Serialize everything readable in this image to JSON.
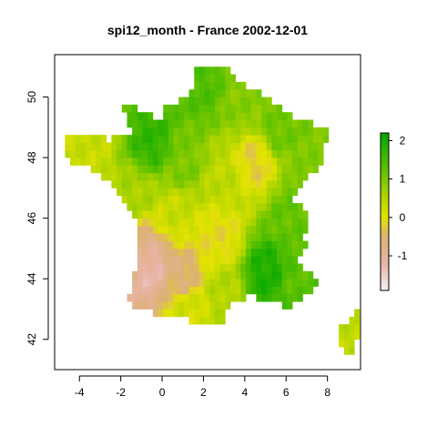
{
  "chart_data": {
    "type": "heatmap",
    "title": "spi12_month - France 2002-12-01",
    "xlabel": "",
    "ylabel": "",
    "xlim": [
      -5.2,
      9.6
    ],
    "ylim": [
      41.0,
      51.4
    ],
    "x_ticks": [
      "-4",
      "-2",
      "0",
      "2",
      "4",
      "6",
      "8"
    ],
    "y_ticks": [
      "42",
      "44",
      "46",
      "48",
      "50"
    ],
    "grid": false,
    "legend": "right colorbar",
    "colorbar": {
      "range": [
        -1.9,
        2.2
      ],
      "ticks": [
        "-1",
        "0",
        "1",
        "2"
      ],
      "stops": [
        {
          "v": -1.9,
          "color": "#f2f2f2"
        },
        {
          "v": -1.2,
          "color": "#e8b4a8"
        },
        {
          "v": -0.5,
          "color": "#dcb272"
        },
        {
          "v": 0.0,
          "color": "#e3e300"
        },
        {
          "v": 0.6,
          "color": "#a9d300"
        },
        {
          "v": 1.2,
          "color": "#63c300"
        },
        {
          "v": 2.2,
          "color": "#00a600"
        }
      ]
    },
    "region_values": [
      {
        "x": 2.0,
        "y": 50.4,
        "v": 1.4
      },
      {
        "x": 3.8,
        "y": 49.8,
        "v": 0.9
      },
      {
        "x": 5.6,
        "y": 48.9,
        "v": 1.1
      },
      {
        "x": -0.5,
        "y": 48.5,
        "v": 1.7
      },
      {
        "x": -3.5,
        "y": 48.3,
        "v": 0.3
      },
      {
        "x": 1.0,
        "y": 47.8,
        "v": 1.0
      },
      {
        "x": 4.5,
        "y": 47.9,
        "v": -0.2
      },
      {
        "x": 3.0,
        "y": 47.2,
        "v": 0.4
      },
      {
        "x": -1.2,
        "y": 46.8,
        "v": 0.6
      },
      {
        "x": 0.6,
        "y": 46.2,
        "v": 0.3
      },
      {
        "x": 6.2,
        "y": 46.0,
        "v": 1.2
      },
      {
        "x": 2.8,
        "y": 45.4,
        "v": -0.1
      },
      {
        "x": -0.6,
        "y": 44.4,
        "v": -1.2
      },
      {
        "x": -1.0,
        "y": 44.9,
        "v": -0.8
      },
      {
        "x": 1.0,
        "y": 44.0,
        "v": -0.6
      },
      {
        "x": 5.0,
        "y": 44.2,
        "v": 1.9
      },
      {
        "x": 6.6,
        "y": 43.8,
        "v": 1.3
      },
      {
        "x": 3.0,
        "y": 43.6,
        "v": 0.5
      },
      {
        "x": 1.2,
        "y": 43.1,
        "v": 0.2
      },
      {
        "x": 9.1,
        "y": 42.3,
        "v": 0.4
      }
    ]
  }
}
